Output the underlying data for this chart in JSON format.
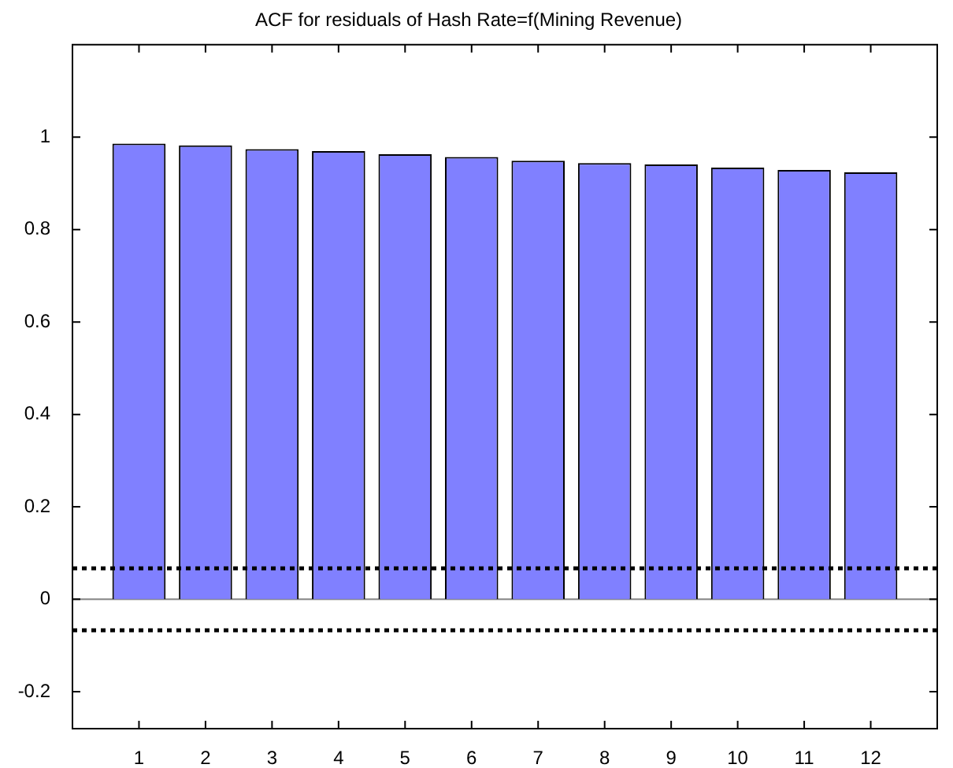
{
  "chart_data": {
    "type": "bar",
    "title": "ACF for residuals of Hash Rate=f(Mining Revenue)",
    "x": [
      1,
      2,
      3,
      4,
      5,
      6,
      7,
      8,
      9,
      10,
      11,
      12
    ],
    "values": [
      0.986,
      0.982,
      0.974,
      0.97,
      0.963,
      0.957,
      0.949,
      0.944,
      0.941,
      0.934,
      0.929,
      0.924
    ],
    "color": "#8080ff",
    "xlim": [
      0,
      13
    ],
    "xticks": [
      1,
      2,
      3,
      4,
      5,
      6,
      7,
      8,
      9,
      10,
      11,
      12
    ],
    "ylim": [
      -0.28,
      1.2
    ],
    "yticks": [
      -0.2,
      0,
      0.2,
      0.4,
      0.6,
      0.8,
      1
    ],
    "ref_lines": [
      {
        "axis": "y",
        "value": 0,
        "label": null,
        "color": "#808080",
        "line_style": "solid"
      },
      {
        "axis": "y",
        "value": 0.067,
        "label": null,
        "color": "#000000",
        "line_style": "dotted"
      },
      {
        "axis": "y",
        "value": -0.067,
        "label": null,
        "color": "#000000",
        "line_style": "dotted"
      }
    ],
    "legend": false
  }
}
